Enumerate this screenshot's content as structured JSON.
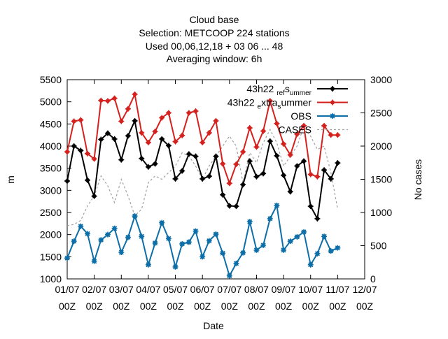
{
  "title_lines": [
    "Cloud base",
    "Selection: METCOOP    224 stations",
    "Used  00,06,12,18  + 03 06 ... 48",
    "Averaging window:  6h"
  ],
  "chart_data": {
    "type": "line",
    "xlabel": "Date",
    "ylabel": "m",
    "y2label": "No cases",
    "xlim": [
      0,
      44
    ],
    "ylim": [
      1000,
      5500
    ],
    "y2lim": [
      0,
      3000
    ],
    "yticks": [
      1000,
      1500,
      2000,
      2500,
      3000,
      3500,
      4000,
      4500,
      5000,
      5500
    ],
    "y2ticks": [
      0,
      500,
      1000,
      1500,
      2000,
      2500,
      3000
    ],
    "xticks": [
      {
        "x": 0,
        "line1": "01/07",
        "line2": "00Z"
      },
      {
        "x": 4,
        "line1": "02/07",
        "line2": "00Z"
      },
      {
        "x": 8,
        "line1": "03/07",
        "line2": "00Z"
      },
      {
        "x": 12,
        "line1": "04/07",
        "line2": "00Z"
      },
      {
        "x": 16,
        "line1": "05/07",
        "line2": "00Z"
      },
      {
        "x": 20,
        "line1": "06/07",
        "line2": "00Z"
      },
      {
        "x": 24,
        "line1": "07/07",
        "line2": "00Z"
      },
      {
        "x": 28,
        "line1": "08/07",
        "line2": "00Z"
      },
      {
        "x": 32,
        "line1": "09/07",
        "line2": "00Z"
      },
      {
        "x": 36,
        "line1": "10/07",
        "line2": "00Z"
      },
      {
        "x": 40,
        "line1": "11/07",
        "line2": "00Z"
      },
      {
        "x": 44,
        "line1": "12/07",
        "line2": "00Z"
      }
    ],
    "legend_position": "top-right",
    "series": [
      {
        "name": "43h22_ref_summer",
        "legend": {
          "main": "43h22",
          "sub1": "ref",
          "mid": "s",
          "sub2": "ummer"
        },
        "color": "#000000",
        "style": "solid",
        "marker": "plus",
        "axis": "y1",
        "values": [
          3210,
          4000,
          3900,
          3230,
          2870,
          4150,
          4290,
          4160,
          3690,
          4230,
          4570,
          3720,
          3530,
          3600,
          4160,
          4010,
          3260,
          3440,
          3820,
          3770,
          3260,
          3320,
          3770,
          2900,
          2650,
          2640,
          3130,
          3660,
          3310,
          3380,
          4110,
          3780,
          3340,
          2970,
          3550,
          3660,
          2640,
          2360,
          3460,
          3260,
          3620
        ]
      },
      {
        "name": "43h22_extra_summer",
        "legend": {
          "main": "43h22",
          "sub1": "e",
          "mid": "xtra",
          "sub2": "s",
          "tail": "ummer"
        },
        "color": "#d4211e",
        "style": "solid",
        "marker": "plus",
        "axis": "y1",
        "values": [
          3870,
          4560,
          4590,
          3830,
          3710,
          5030,
          5020,
          5080,
          4560,
          4840,
          5170,
          4300,
          4080,
          4330,
          4640,
          4750,
          4100,
          4240,
          4750,
          4790,
          4080,
          4300,
          4570,
          3600,
          3160,
          3590,
          3870,
          4410,
          3980,
          4340,
          5020,
          4510,
          4050,
          3800,
          4270,
          4460,
          3360,
          3310,
          4460,
          4250,
          4250
        ]
      },
      {
        "name": "OBS",
        "legend": {
          "main": "OBS"
        },
        "color": "#0d6ea8",
        "style": "solid",
        "marker": "star",
        "axis": "y1",
        "values": [
          1470,
          1850,
          2190,
          2020,
          1400,
          1880,
          2000,
          2140,
          1600,
          1940,
          2420,
          1960,
          1320,
          1810,
          2270,
          1910,
          1270,
          1790,
          1830,
          2080,
          1500,
          1860,
          2010,
          1580,
          1070,
          1350,
          1590,
          2290,
          1650,
          1760,
          2360,
          2660,
          1650,
          1850,
          1950,
          2060,
          1320,
          1570,
          1960,
          1630,
          1700
        ]
      },
      {
        "name": "CASES",
        "legend": {
          "main": "CASES"
        },
        "color": "#a0a0a0",
        "style": "dashed",
        "marker": "none",
        "axis": "y2",
        "values": [
          800,
          820,
          880,
          1100,
          1250,
          1550,
          1400,
          1150,
          1500,
          1250,
          950,
          1050,
          1450,
          1550,
          1500,
          1600,
          1700,
          1900,
          1850,
          1700,
          1500,
          1700,
          1850,
          2000,
          2150,
          2000,
          1450,
          1900,
          1750,
          2050,
          2250,
          2050,
          1700,
          1850,
          2000,
          2300,
          2150,
          1950,
          2000,
          1600,
          1050
        ]
      }
    ]
  }
}
